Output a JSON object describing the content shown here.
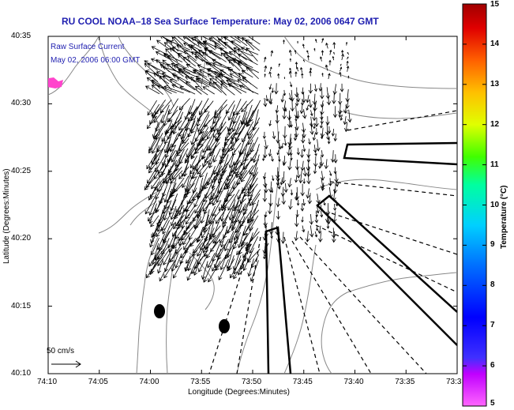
{
  "title": "RU COOL  NOAA–18  Sea Surface Temperature:  May 02, 2006 0647 GMT",
  "legend": {
    "line1": "Raw Surface Current",
    "line2": "May 02, 2006 06:00 GMT"
  },
  "scale_arrow_label": "50 cm/s",
  "x_axis": {
    "label": "Longitude (Degrees:Minutes)",
    "ticks": [
      "74:10",
      "74:05",
      "74:00",
      "73:55",
      "73:50",
      "73:45",
      "73:40",
      "73:35",
      "73:3"
    ]
  },
  "y_axis": {
    "label": "Latitude (Degrees:Minutes)",
    "ticks": [
      "40:35",
      "40:30",
      "40:25",
      "40:20",
      "40:15",
      "40:10"
    ]
  },
  "colorbar": {
    "label": "Temperature (°C)",
    "ticks": [
      "15",
      "14",
      "13",
      "12",
      "11",
      "10",
      "9",
      "8",
      "7",
      "6",
      "5"
    ],
    "colors": {
      "low": "#ff00ff",
      "blue": "#0000ff",
      "cyan": "#00c8ff",
      "green": "#00ff40",
      "yellow": "#ffff00",
      "orange": "#ff8000",
      "high": "#a00000"
    }
  },
  "colors": {
    "title": "#1f1fb0",
    "land_contour": "#888888",
    "sst_patch": "#ff44cc"
  }
}
